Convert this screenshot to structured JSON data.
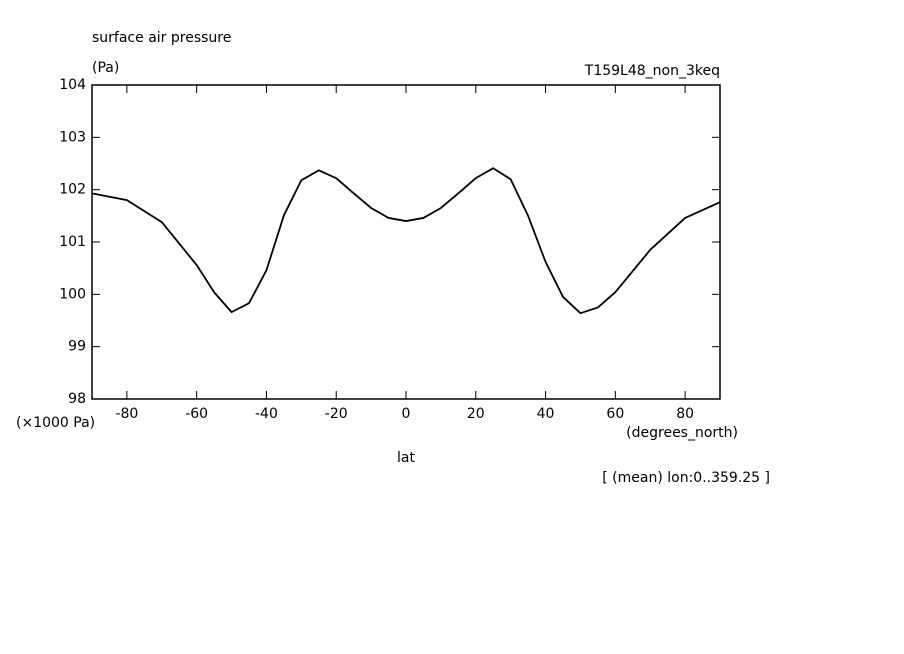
{
  "chart_data": {
    "type": "line",
    "title": "surface air pressure",
    "y_label": "(Pa)",
    "experiment": "T159L48_non_3keq",
    "y_scale_label": "(×1000 Pa)",
    "x_units": "(degrees_north)",
    "x_label": "lat",
    "note": "[ (mean) lon:0..359.25 ]",
    "x": [
      -90,
      -80,
      -70,
      -60,
      -55,
      -50,
      -45,
      -40,
      -35,
      -30,
      -25,
      -20,
      -15,
      -10,
      -5,
      0,
      5,
      10,
      15,
      20,
      25,
      30,
      35,
      40,
      45,
      50,
      55,
      60,
      70,
      80,
      90
    ],
    "series": [
      {
        "color": "#000000",
        "values": [
          101.93,
          101.8,
          101.38,
          100.56,
          100.04,
          99.66,
          99.83,
          100.46,
          101.51,
          102.18,
          102.37,
          102.22,
          101.93,
          101.65,
          101.46,
          101.4,
          101.46,
          101.65,
          101.93,
          102.22,
          102.41,
          102.2,
          101.5,
          100.62,
          99.95,
          99.64,
          99.75,
          100.04,
          100.85,
          101.46,
          101.76
        ]
      }
    ],
    "xlim": [
      -90,
      90
    ],
    "ylim": [
      98,
      104
    ],
    "xticks": [
      -80,
      -60,
      -40,
      -20,
      0,
      20,
      40,
      60,
      80
    ],
    "yticks": [
      98,
      99,
      100,
      101,
      102,
      103,
      104
    ]
  }
}
